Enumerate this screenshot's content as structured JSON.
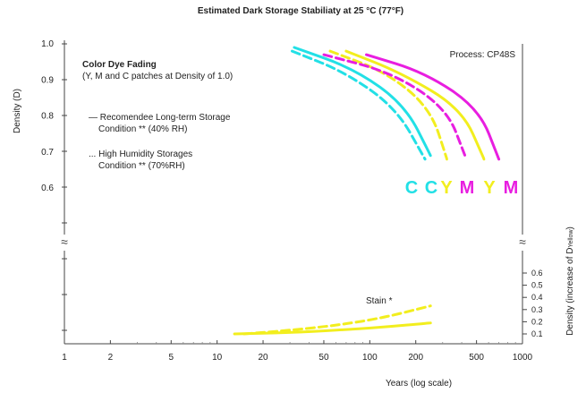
{
  "chart_data": {
    "type": "line",
    "title": "Estimated Dark Storage Stabiliaty at 25 °C (77°F)",
    "xlabel": "Years (log scale)",
    "ylabel_left": "Density (D)",
    "ylabel_right": "Density (increase of D",
    "ylabel_right_sub": "Yellow",
    "ylabel_right_close": ")",
    "x_scale": "log",
    "xlim": [
      1,
      1000
    ],
    "ylim_top": [
      0.6,
      1.0
    ],
    "ylim_bottom": [
      0.1,
      0.6
    ],
    "x_ticks": [
      1,
      2,
      5,
      10,
      20,
      50,
      100,
      200,
      500,
      1000
    ],
    "x_tick_labels": [
      "1",
      "2",
      "5",
      "10",
      "20",
      "50",
      "100",
      "200",
      "500",
      "1000"
    ],
    "y_ticks_top": [
      1.0,
      0.9,
      0.8,
      0.7,
      0.6
    ],
    "y_tick_labels_top": [
      "1.0",
      "0.9",
      "0.8",
      "0.7",
      "0.6"
    ],
    "y_ticks_bottom": [
      0.6,
      0.5,
      0.4,
      0.3,
      0.2,
      0.1
    ],
    "y_tick_labels_bottom": [
      "0.6",
      "0.5",
      "0.4",
      "0.3",
      "0.2",
      "0.1"
    ],
    "process_label": "Process: CP48S",
    "legend_title": "Color Dye Fading",
    "legend_subtitle": "(Y, M and C patches at Density of 1.0)",
    "legend_solid_line1": "— Recomendee Long-term Storage",
    "legend_solid_line2": "Condition ** (40% RH)",
    "legend_dashed_line1": "... High Humidity Storages",
    "legend_dashed_line2": "Condition ** (70%RH)",
    "stain_label": "Stain *",
    "colors": {
      "cyan": "#22e0e6",
      "yellow": "#f2ee1e",
      "magenta": "#e81ee0"
    },
    "curve_labels": [
      {
        "text": "C",
        "color": "cyan"
      },
      {
        "text": "C",
        "color": "cyan"
      },
      {
        "text": "Y",
        "color": "yellow"
      },
      {
        "text": "M",
        "color": "magenta"
      },
      {
        "text": "Y",
        "color": "yellow"
      },
      {
        "text": "M",
        "color": "magenta"
      }
    ],
    "series": [
      {
        "color": "cyan",
        "style": "dashed",
        "panel": "top",
        "x": [
          31,
          70,
          150,
          230
        ],
        "y": [
          0.98,
          0.92,
          0.82,
          0.68
        ]
      },
      {
        "color": "cyan",
        "style": "solid",
        "panel": "top",
        "x": [
          32,
          80,
          170,
          250
        ],
        "y": [
          0.99,
          0.93,
          0.83,
          0.69
        ]
      },
      {
        "color": "yellow",
        "style": "dashed",
        "panel": "top",
        "x": [
          55,
          130,
          250,
          320
        ],
        "y": [
          0.98,
          0.92,
          0.82,
          0.68
        ]
      },
      {
        "color": "magenta",
        "style": "dashed",
        "panel": "top",
        "x": [
          50,
          140,
          320,
          420
        ],
        "y": [
          0.97,
          0.92,
          0.82,
          0.69
        ]
      },
      {
        "color": "yellow",
        "style": "solid",
        "panel": "top",
        "x": [
          70,
          160,
          400,
          560
        ],
        "y": [
          0.98,
          0.92,
          0.82,
          0.68
        ]
      },
      {
        "color": "magenta",
        "style": "solid",
        "panel": "top",
        "x": [
          95,
          230,
          520,
          700
        ],
        "y": [
          0.97,
          0.92,
          0.82,
          0.68
        ]
      },
      {
        "color": "yellow",
        "style": "dashed",
        "panel": "bottom",
        "x": [
          15,
          30,
          60,
          120,
          250
        ],
        "y": [
          0.1,
          0.13,
          0.17,
          0.23,
          0.33
        ]
      },
      {
        "color": "yellow",
        "style": "solid",
        "panel": "bottom",
        "x": [
          13,
          30,
          60,
          120,
          250
        ],
        "y": [
          0.1,
          0.11,
          0.13,
          0.155,
          0.19
        ]
      }
    ]
  }
}
